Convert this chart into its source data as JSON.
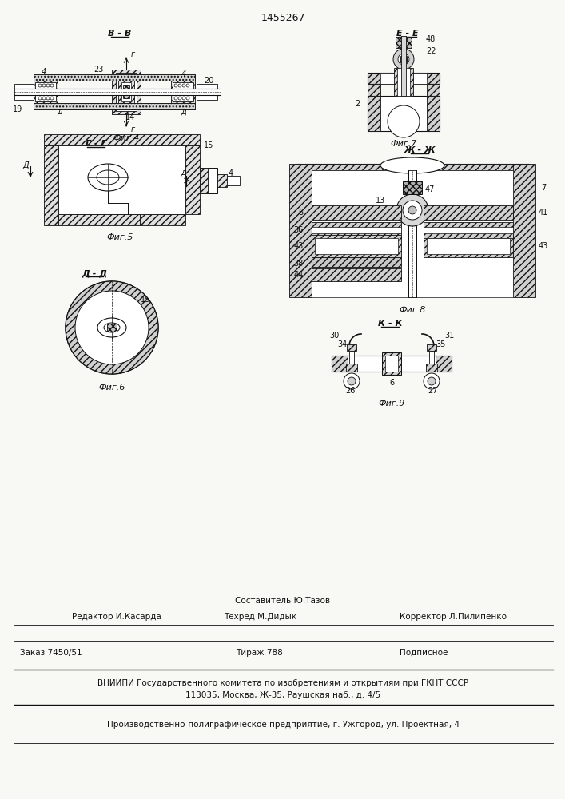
{
  "patent_number": "1455267",
  "bg": "#f8f8f4",
  "lc": "#111111",
  "footer": {
    "line1_center": "Составитель Ю.Тазов",
    "line2_left": "Редактор И.Касарда",
    "line2_center": "Техред М.Дидык",
    "line2_right": "Корректор Л.Пилипенко",
    "line3_left": "Заказ 7450/51",
    "line3_center": "Тираж 788",
    "line3_right": "Подписное",
    "line4": "ВНИИПИ Государственного комитета по изобретениям и открытиям при ГКНТ СССР",
    "line5": "113035, Москва, Ж-35, Раушская наб., д. 4/5",
    "line6": "Производственно-полиграфическое предприятие, г. Ужгород, ул. Проектная, 4"
  }
}
